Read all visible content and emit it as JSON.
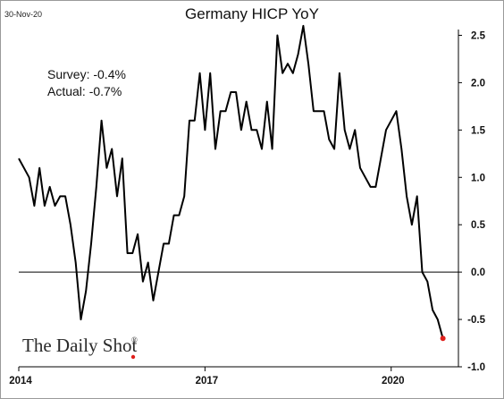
{
  "header": {
    "date": "30-Nov-20"
  },
  "annotations": {
    "survey": "Survey: -0.4%",
    "actual": "Actual:  -0.7%"
  },
  "brand": {
    "name": "The Daily Shot",
    "mark": "®"
  },
  "colors": {
    "line": "#000000",
    "marker": "#e0201c",
    "axis": "#000000",
    "zero_line": "#000000",
    "brand_dot": "#e0201c"
  },
  "chart_data": {
    "type": "line",
    "title": "Germany HICP YoY",
    "xlabel": "",
    "ylabel": "",
    "y_axis_side": "right",
    "ylim": [
      -1.0,
      2.75
    ],
    "xlim": [
      "2014-01",
      "2021-02"
    ],
    "yticks": [
      {
        "value": 2.5,
        "label": "2.5"
      },
      {
        "value": 2.0,
        "label": "2.0"
      },
      {
        "value": 1.5,
        "label": "1.5"
      },
      {
        "value": 1.0,
        "label": "1.0"
      },
      {
        "value": 0.5,
        "label": "0.5"
      },
      {
        "value": 0.0,
        "label": "0.0"
      },
      {
        "value": -0.5,
        "label": "-0.5"
      },
      {
        "value": -1.0,
        "label": "-1.0"
      }
    ],
    "xticks": [
      {
        "date": "2014-01",
        "label": "2014"
      },
      {
        "date": "2017-01",
        "label": "2017"
      },
      {
        "date": "2020-01",
        "label": "2020"
      }
    ],
    "reference_line": 0.0,
    "grid": false,
    "legend": "none",
    "last_point_marker": true,
    "series": [
      {
        "dates": [
          "2014-01",
          "2014-02",
          "2014-03",
          "2014-04",
          "2014-05",
          "2014-06",
          "2014-07",
          "2014-08",
          "2014-09",
          "2014-10",
          "2014-11",
          "2014-12",
          "2015-01",
          "2015-02",
          "2015-03",
          "2015-04",
          "2015-05",
          "2015-06",
          "2015-07",
          "2015-08",
          "2015-09",
          "2015-10",
          "2015-11",
          "2015-12",
          "2016-01",
          "2016-02",
          "2016-03",
          "2016-04",
          "2016-05",
          "2016-06",
          "2016-07",
          "2016-08",
          "2016-09",
          "2016-10",
          "2016-11",
          "2016-12",
          "2017-01",
          "2017-02",
          "2017-03",
          "2017-04",
          "2017-05",
          "2017-06",
          "2017-07",
          "2017-08",
          "2017-09",
          "2017-10",
          "2017-11",
          "2017-12",
          "2018-01",
          "2018-02",
          "2018-03",
          "2018-04",
          "2018-05",
          "2018-06",
          "2018-07",
          "2018-08",
          "2018-09",
          "2018-10",
          "2018-11",
          "2018-12",
          "2019-01",
          "2019-02",
          "2019-03",
          "2019-04",
          "2019-05",
          "2019-06",
          "2019-07",
          "2019-08",
          "2019-09",
          "2019-10",
          "2019-11",
          "2019-12",
          "2020-01",
          "2020-02",
          "2020-03",
          "2020-04",
          "2020-05",
          "2020-06",
          "2020-07",
          "2020-08",
          "2020-09",
          "2020-10",
          "2020-11"
        ],
        "values": [
          1.2,
          1.1,
          1.0,
          0.7,
          1.1,
          0.7,
          0.9,
          0.7,
          0.8,
          0.8,
          0.5,
          0.1,
          -0.5,
          -0.2,
          0.3,
          0.9,
          1.6,
          1.1,
          1.3,
          0.8,
          1.2,
          0.2,
          0.2,
          0.4,
          -0.1,
          0.1,
          -0.3,
          0.0,
          0.3,
          0.3,
          0.6,
          0.6,
          0.8,
          1.6,
          1.6,
          2.1,
          1.5,
          2.1,
          1.3,
          1.7,
          1.7,
          1.9,
          1.9,
          1.5,
          1.8,
          1.5,
          1.5,
          1.3,
          1.8,
          1.3,
          2.5,
          2.1,
          2.2,
          2.1,
          2.3,
          2.6,
          2.2,
          1.7,
          1.7,
          1.7,
          1.4,
          1.3,
          2.1,
          1.5,
          1.3,
          1.5,
          1.1,
          1.0,
          0.9,
          0.9,
          1.2,
          1.5,
          1.6,
          1.7,
          1.3,
          0.8,
          0.5,
          0.8,
          0.0,
          -0.1,
          -0.4,
          -0.5,
          -0.7
        ]
      }
    ]
  }
}
